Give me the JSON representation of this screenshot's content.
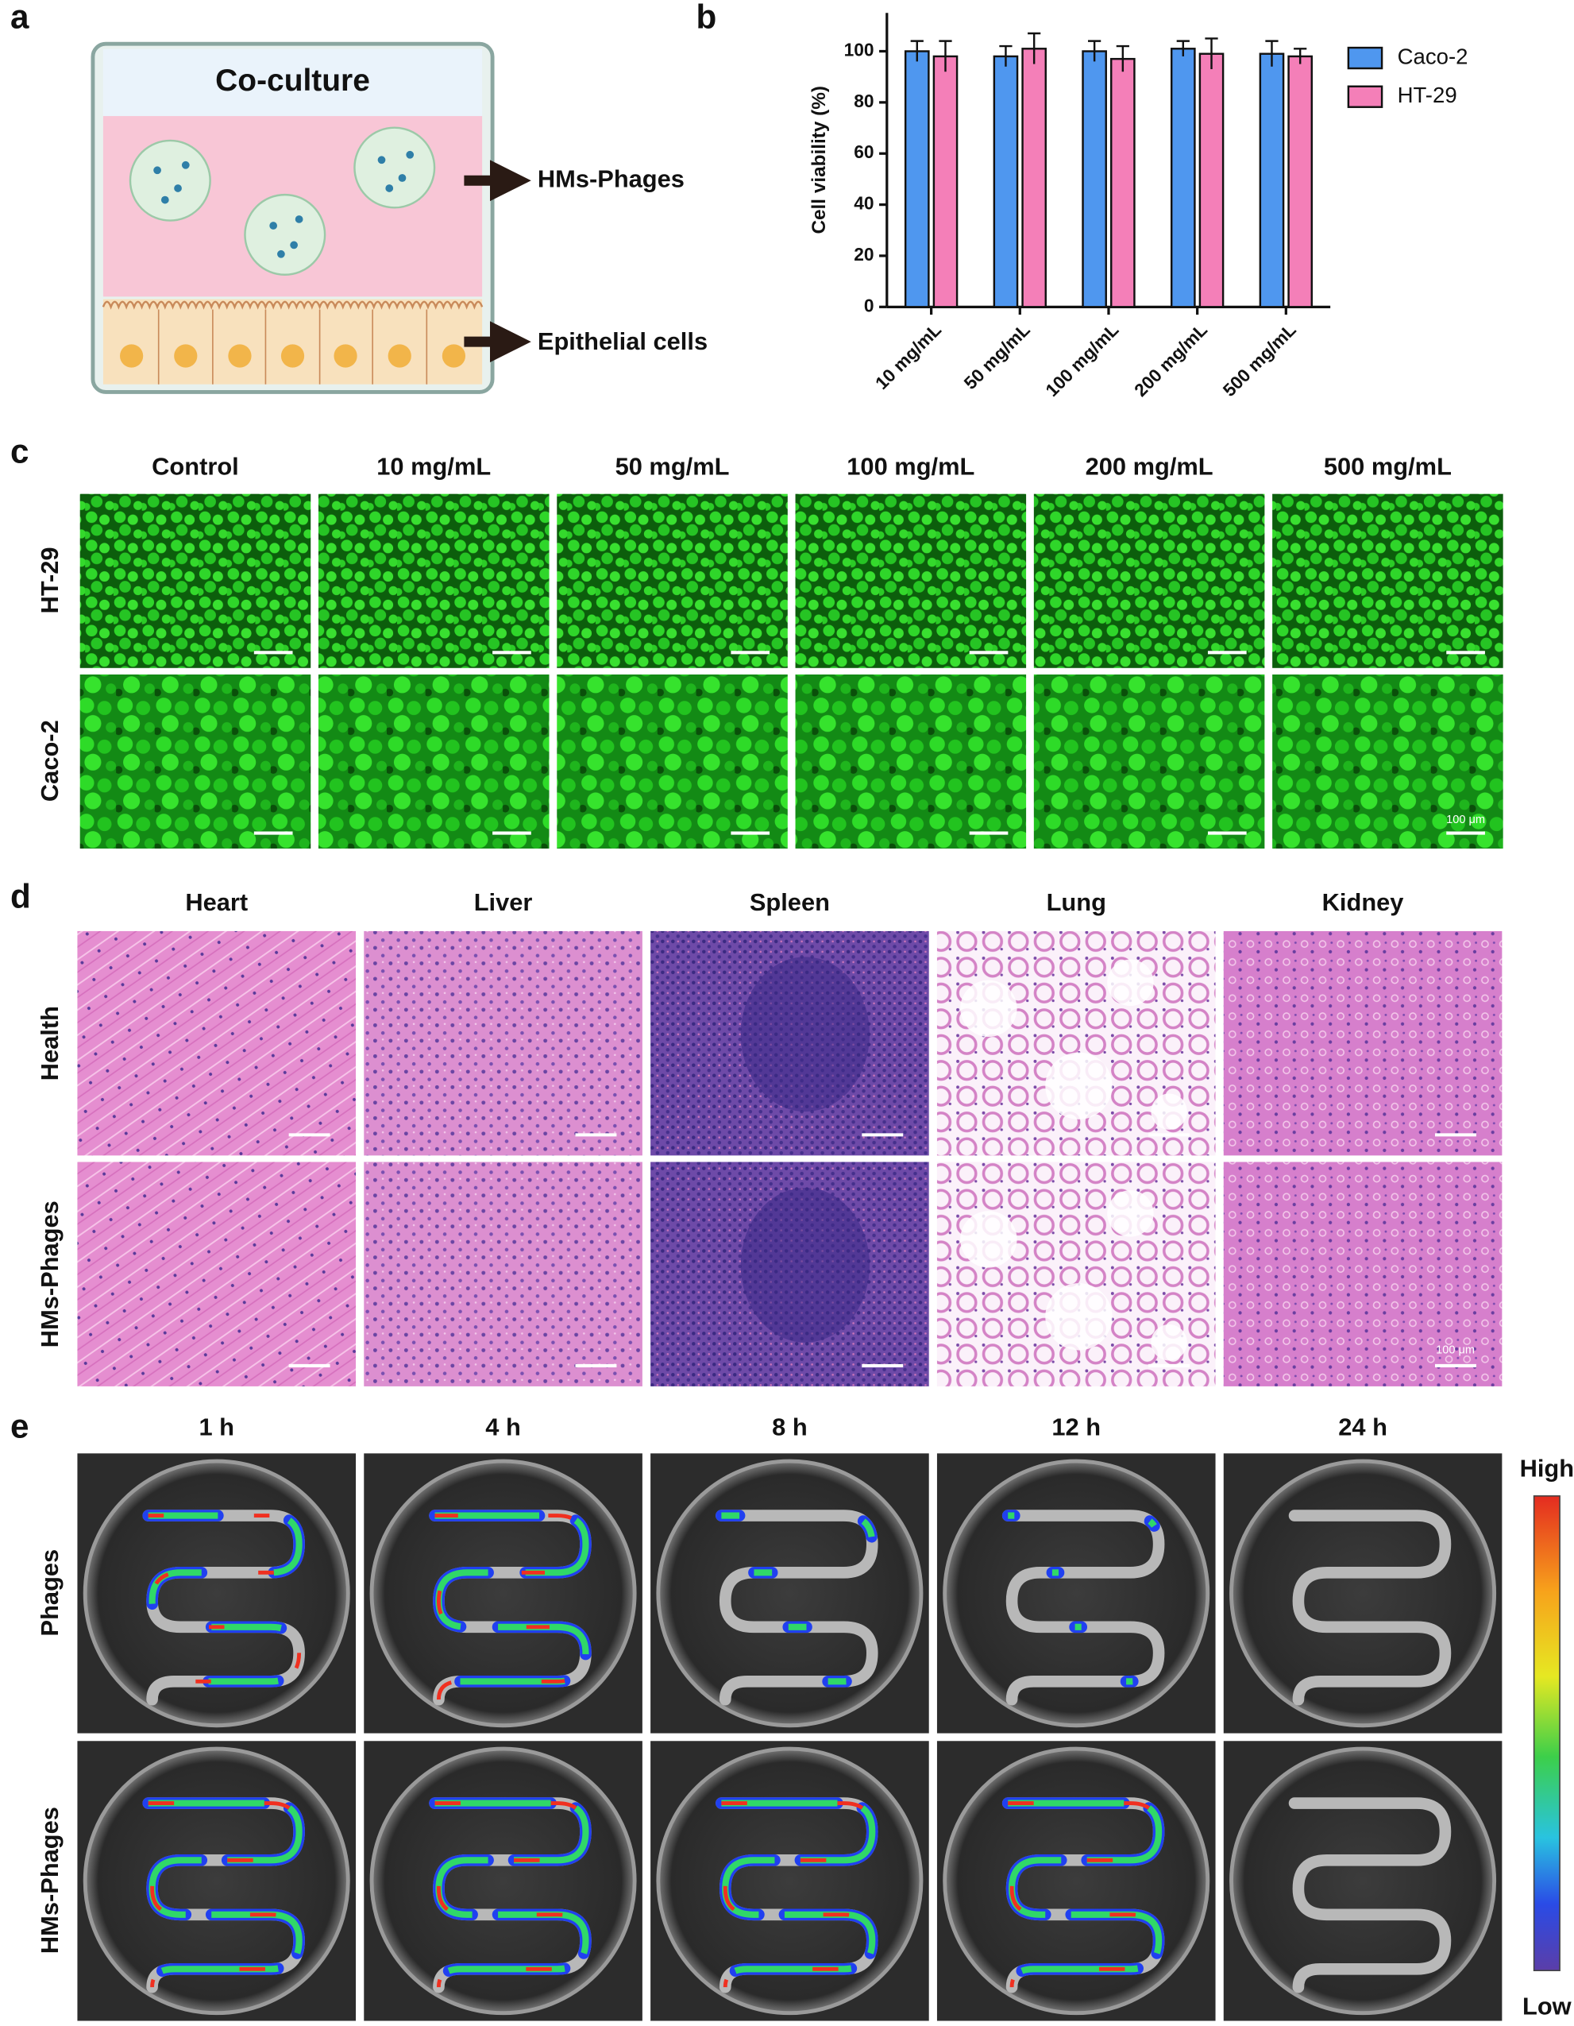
{
  "panel_labels": [
    "a",
    "b",
    "c",
    "d",
    "e"
  ],
  "a": {
    "title": "Co-culture",
    "arrows": [
      "HMs-Phages",
      "Epithelial cells"
    ]
  },
  "chart_data": {
    "type": "bar",
    "ylabel": "Cell viability (%)",
    "categories": [
      "10 mg/mL",
      "50 mg/mL",
      "100 mg/mL",
      "200 mg/mL",
      "500 mg/mL"
    ],
    "series": [
      {
        "name": "Caco-2",
        "color": "#4f97ef",
        "values": [
          100,
          98,
          100,
          101,
          99
        ],
        "errors": [
          4,
          4,
          4,
          3,
          5
        ]
      },
      {
        "name": "HT-29",
        "color": "#f47fb8",
        "values": [
          98,
          101,
          97,
          99,
          98
        ],
        "errors": [
          6,
          6,
          5,
          6,
          3
        ]
      }
    ],
    "ylim": [
      0,
      115
    ],
    "yticks": [
      0,
      20,
      40,
      60,
      80,
      100
    ],
    "legend": "right"
  },
  "c": {
    "columns": [
      "Control",
      "10 mg/mL",
      "50 mg/mL",
      "100 mg/mL",
      "200 mg/mL",
      "500 mg/mL"
    ],
    "rows": [
      "HT-29",
      "Caco-2"
    ],
    "scale_bar": "100 μm"
  },
  "d": {
    "columns": [
      "Heart",
      "Liver",
      "Spleen",
      "Lung",
      "Kidney"
    ],
    "rows": [
      "Health",
      "HMs-Phages"
    ],
    "scale_bar": "100 μm"
  },
  "e": {
    "columns": [
      "1 h",
      "4 h",
      "8 h",
      "12 h",
      "24 h"
    ],
    "rows": [
      "Phages",
      "HMs-Phages"
    ],
    "colorbar": {
      "high": "High",
      "low": "Low"
    }
  }
}
